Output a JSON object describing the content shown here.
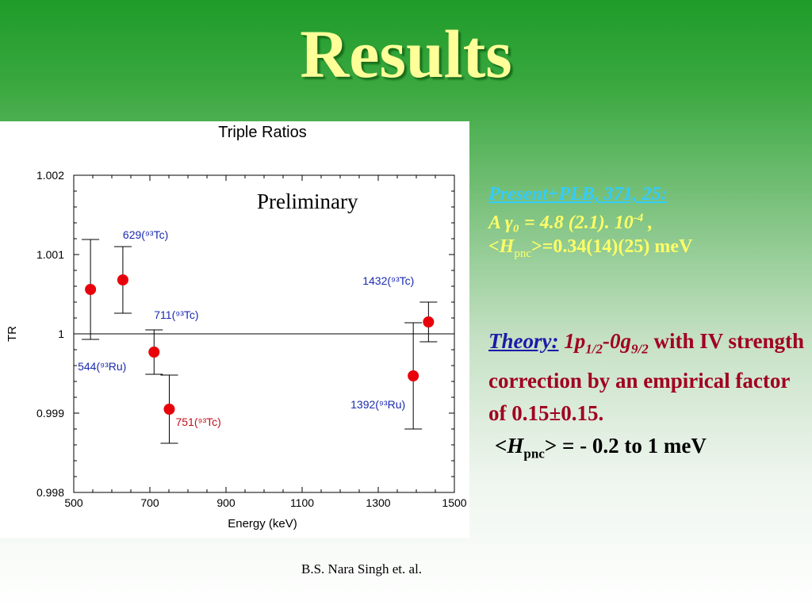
{
  "slide": {
    "title": "Results",
    "footer": "B.S. Nara Singh  et. al."
  },
  "right_panel": {
    "ref_label": "Present+PLB, 371, 25:",
    "asym_prefix": "A",
    "asym_symbol": "γ₀",
    "asym_value": "= 4.8 (2.1). 10",
    "asym_exp": "-4",
    "asym_suffix": " ,",
    "h_open": "<H",
    "h_sub": "pnc",
    "h_value": ">=0.34(14)(25) meV",
    "theory_label": "Theory:",
    "orbit_a": "1p",
    "orbit_a_sub": "1/2",
    "orbit_dash": "-0g",
    "orbit_b_sub": "9/2",
    "theory_rest": "with IV strength correction by an empirical factor of 0.15±0.15.",
    "theory_h_open": "<H",
    "theory_h_sub": "pnc",
    "theory_h_value": "> = - 0.2 to 1 meV"
  },
  "chart_data": {
    "type": "scatter",
    "title": "Triple Ratios",
    "annotation": "Preliminary",
    "xlabel": "Energy (keV)",
    "ylabel": "TR",
    "xlim": [
      500,
      1500
    ],
    "ylim": [
      0.998,
      1.002
    ],
    "xticks": [
      "500",
      "700",
      "900",
      "1100",
      "1300",
      "1500"
    ],
    "yticks": [
      "0.998",
      "0.999",
      "1",
      "1.001",
      "1.002"
    ],
    "reference_line": 1,
    "points": [
      {
        "x": 544,
        "y": 1.00056,
        "err": 0.00063,
        "label": "544(⁹³Ru)",
        "label_color": "#1a2ab0"
      },
      {
        "x": 629,
        "y": 1.00068,
        "err": 0.00042,
        "label": "629(⁹³Tc)",
        "label_color": "#1a2ab0"
      },
      {
        "x": 711,
        "y": 0.99977,
        "err": 0.00028,
        "label": "711(⁹³Tc)",
        "label_color": "#1a2ab0"
      },
      {
        "x": 751,
        "y": 0.99905,
        "err": 0.00043,
        "label": "751(⁹³Tc)",
        "label_color": "#c0101a"
      },
      {
        "x": 1392,
        "y": 0.99947,
        "err": 0.00067,
        "label": "1392(⁹³Ru)",
        "label_color": "#1a2ab0"
      },
      {
        "x": 1432,
        "y": 1.00015,
        "err": 0.00025,
        "label": "1432(⁹³Tc)",
        "label_color": "#1a2ab0"
      }
    ],
    "point_color": "#e8000b"
  }
}
